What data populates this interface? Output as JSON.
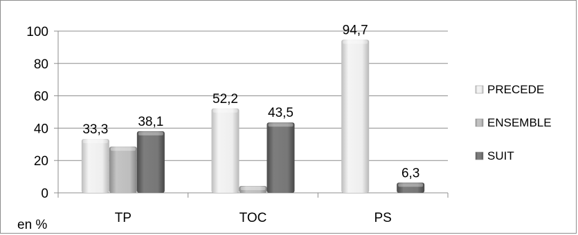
{
  "chart_data": {
    "type": "bar",
    "categories": [
      "TP",
      "TOC",
      "PS"
    ],
    "series": [
      {
        "name": "PRECEDE",
        "values": [
          33.3,
          52.2,
          94.7
        ],
        "labels": [
          "33,3",
          "52,2",
          "94,7"
        ],
        "color": "#e6e6e6"
      },
      {
        "name": "ENSEMBLE",
        "values": [
          28.6,
          4.3,
          0
        ],
        "labels": [
          "",
          "",
          ""
        ],
        "color": "#b0b0b0"
      },
      {
        "name": "SUIT",
        "values": [
          38.1,
          43.5,
          6.3
        ],
        "labels": [
          "38,1",
          "43,5",
          "6,3"
        ],
        "color": "#6f6f6f"
      }
    ],
    "yticks": [
      "0",
      "20",
      "40",
      "60",
      "80",
      "100"
    ],
    "ylim": [
      0,
      100
    ],
    "unit_label": "en %",
    "grid": true,
    "legend": "right"
  }
}
